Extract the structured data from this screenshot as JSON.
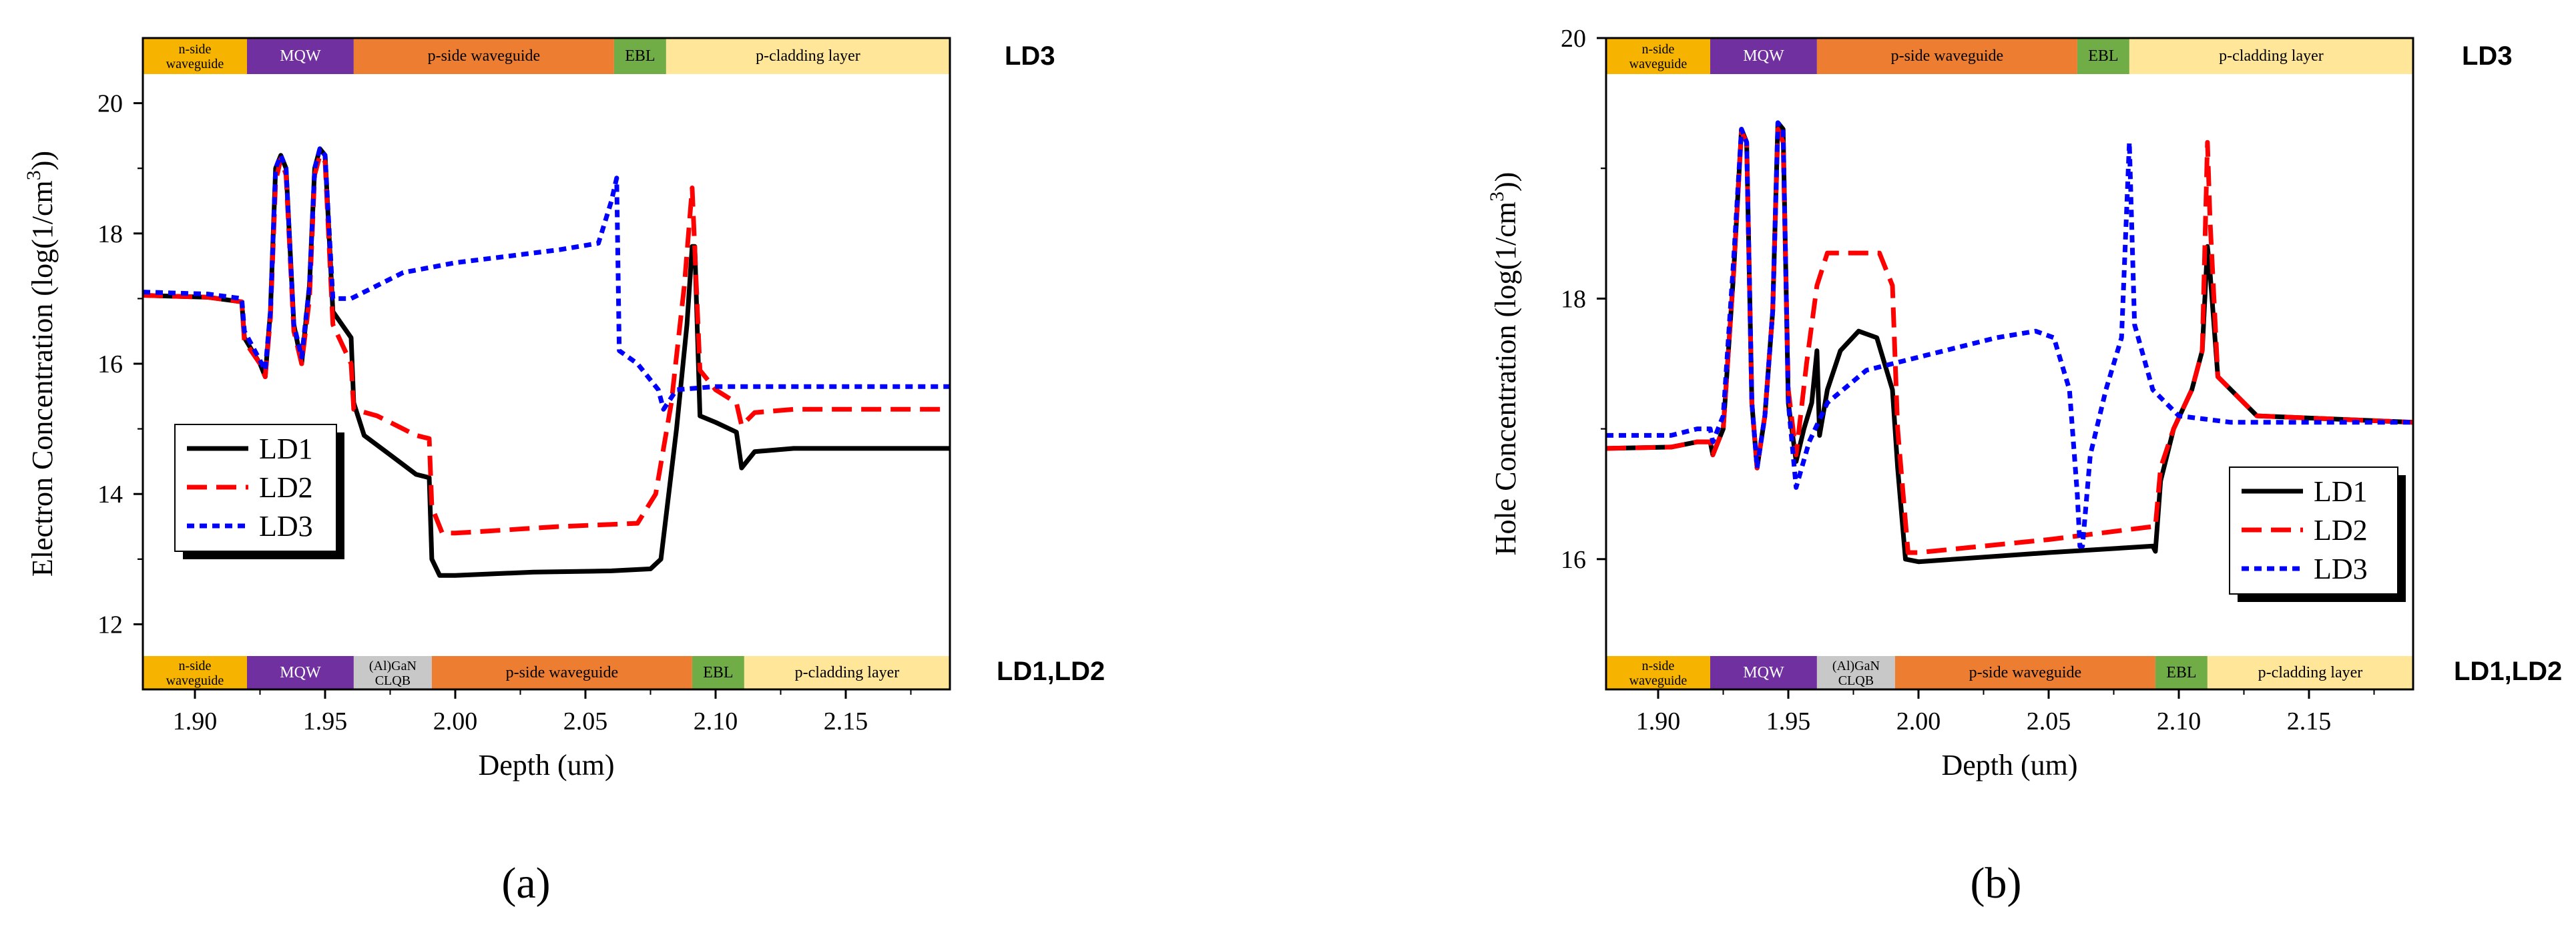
{
  "colors": {
    "n_waveguide": "#f6b400",
    "mqw": "#7030a0",
    "clqb": "#c8c8c8",
    "p_waveguide": "#ed7d31",
    "ebl": "#70ad47",
    "p_cladding": "#ffe699",
    "LD1": "#000000",
    "LD2": "#ff0000",
    "LD3": "#0000ff"
  },
  "stacks": {
    "top_label": "LD3",
    "bottom_label": "LD1,LD2",
    "top_layers": [
      {
        "key": "n_waveguide",
        "lines": [
          "n-side",
          "waveguide"
        ],
        "from": 1.88,
        "to": 1.92
      },
      {
        "key": "mqw",
        "lines": [
          "MQW"
        ],
        "from": 1.92,
        "to": 1.961
      },
      {
        "key": "p_waveguide",
        "lines": [
          "p-side waveguide"
        ],
        "from": 1.961,
        "to": 2.061
      },
      {
        "key": "ebl",
        "lines": [
          "EBL"
        ],
        "from": 2.061,
        "to": 2.081
      },
      {
        "key": "p_cladding",
        "lines": [
          "p-cladding layer"
        ],
        "from": 2.081,
        "to": 2.19
      }
    ],
    "bottom_layers": [
      {
        "key": "n_waveguide",
        "lines": [
          "n-side",
          "waveguide"
        ],
        "from": 1.88,
        "to": 1.92
      },
      {
        "key": "mqw",
        "lines": [
          "MQW"
        ],
        "from": 1.92,
        "to": 1.961
      },
      {
        "key": "clqb",
        "lines": [
          "(Al)GaN",
          "CLQB"
        ],
        "from": 1.961,
        "to": 1.991
      },
      {
        "key": "p_waveguide",
        "lines": [
          "p-side waveguide"
        ],
        "from": 1.991,
        "to": 2.091
      },
      {
        "key": "ebl",
        "lines": [
          "EBL"
        ],
        "from": 2.091,
        "to": 2.111
      },
      {
        "key": "p_cladding",
        "lines": [
          "p-cladding layer"
        ],
        "from": 2.111,
        "to": 2.19
      }
    ]
  },
  "chart_data": [
    {
      "id": "a",
      "panel_label": "(a)",
      "type": "line",
      "xlabel": "Depth (um)",
      "ylabel_prefix": "Electron Concentration (log(1/cm",
      "ylabel_sup": "3",
      "ylabel_suffix": "))",
      "xlim": [
        1.88,
        2.19
      ],
      "ylim": [
        11,
        21
      ],
      "xticks": [
        1.9,
        1.95,
        2.0,
        2.05,
        2.1,
        2.15
      ],
      "xtick_labels": [
        "1.90",
        "1.95",
        "2.00",
        "2.05",
        "2.10",
        "2.15"
      ],
      "yticks": [
        12,
        14,
        16,
        18,
        20
      ],
      "ytick_labels": [
        "12",
        "14",
        "16",
        "18",
        "20"
      ],
      "legend_position": "lower-left",
      "series": [
        {
          "name": "LD1",
          "dash": "solid",
          "points": [
            [
              1.88,
              17.05
            ],
            [
              1.905,
              17.02
            ],
            [
              1.918,
              16.95
            ],
            [
              1.919,
              16.4
            ],
            [
              1.925,
              16.0
            ],
            [
              1.927,
              15.8
            ],
            [
              1.929,
              16.8
            ],
            [
              1.931,
              19.0
            ],
            [
              1.933,
              19.2
            ],
            [
              1.935,
              19.0
            ],
            [
              1.938,
              16.6
            ],
            [
              1.941,
              16.0
            ],
            [
              1.944,
              17.2
            ],
            [
              1.946,
              19.0
            ],
            [
              1.948,
              19.3
            ],
            [
              1.95,
              19.2
            ],
            [
              1.953,
              16.8
            ],
            [
              1.96,
              16.4
            ],
            [
              1.961,
              15.4
            ],
            [
              1.965,
              14.9
            ],
            [
              1.975,
              14.6
            ],
            [
              1.985,
              14.3
            ],
            [
              1.99,
              14.25
            ],
            [
              1.991,
              13.0
            ],
            [
              1.994,
              12.75
            ],
            [
              2.0,
              12.75
            ],
            [
              2.03,
              12.8
            ],
            [
              2.06,
              12.82
            ],
            [
              2.075,
              12.85
            ],
            [
              2.079,
              13.0
            ],
            [
              2.085,
              15.0
            ],
            [
              2.089,
              16.6
            ],
            [
              2.091,
              17.8
            ],
            [
              2.092,
              17.8
            ],
            [
              2.094,
              15.2
            ],
            [
              2.1,
              15.1
            ],
            [
              2.108,
              14.95
            ],
            [
              2.11,
              14.4
            ],
            [
              2.115,
              14.65
            ],
            [
              2.13,
              14.7
            ],
            [
              2.19,
              14.7
            ]
          ]
        },
        {
          "name": "LD2",
          "dash": "dashed",
          "points": [
            [
              1.88,
              17.05
            ],
            [
              1.905,
              17.02
            ],
            [
              1.918,
              16.95
            ],
            [
              1.919,
              16.35
            ],
            [
              1.925,
              16.0
            ],
            [
              1.927,
              15.8
            ],
            [
              1.929,
              16.7
            ],
            [
              1.931,
              18.8
            ],
            [
              1.933,
              19.15
            ],
            [
              1.935,
              18.9
            ],
            [
              1.938,
              16.5
            ],
            [
              1.941,
              16.0
            ],
            [
              1.944,
              17.0
            ],
            [
              1.946,
              18.9
            ],
            [
              1.948,
              19.2
            ],
            [
              1.95,
              19.1
            ],
            [
              1.953,
              16.6
            ],
            [
              1.96,
              16.0
            ],
            [
              1.961,
              15.3
            ],
            [
              1.97,
              15.2
            ],
            [
              1.985,
              14.9
            ],
            [
              1.99,
              14.85
            ],
            [
              1.991,
              13.8
            ],
            [
              1.995,
              13.4
            ],
            [
              2.0,
              13.4
            ],
            [
              2.04,
              13.5
            ],
            [
              2.07,
              13.55
            ],
            [
              2.077,
              14.0
            ],
            [
              2.083,
              15.4
            ],
            [
              2.088,
              17.2
            ],
            [
              2.091,
              18.7
            ],
            [
              2.094,
              15.9
            ],
            [
              2.1,
              15.6
            ],
            [
              2.108,
              15.4
            ],
            [
              2.11,
              15.05
            ],
            [
              2.115,
              15.25
            ],
            [
              2.13,
              15.3
            ],
            [
              2.19,
              15.3
            ]
          ]
        },
        {
          "name": "LD3",
          "dash": "dotted",
          "points": [
            [
              1.88,
              17.1
            ],
            [
              1.905,
              17.07
            ],
            [
              1.918,
              17.0
            ],
            [
              1.919,
              16.5
            ],
            [
              1.925,
              16.05
            ],
            [
              1.927,
              15.9
            ],
            [
              1.929,
              16.8
            ],
            [
              1.931,
              19.0
            ],
            [
              1.933,
              19.2
            ],
            [
              1.935,
              19.0
            ],
            [
              1.938,
              16.6
            ],
            [
              1.941,
              16.1
            ],
            [
              1.944,
              17.2
            ],
            [
              1.946,
              19.0
            ],
            [
              1.948,
              19.3
            ],
            [
              1.95,
              19.2
            ],
            [
              1.953,
              17.0
            ],
            [
              1.96,
              17.0
            ],
            [
              1.97,
              17.2
            ],
            [
              1.98,
              17.4
            ],
            [
              2.0,
              17.55
            ],
            [
              2.02,
              17.65
            ],
            [
              2.04,
              17.75
            ],
            [
              2.055,
              17.85
            ],
            [
              2.06,
              18.5
            ],
            [
              2.062,
              18.85
            ],
            [
              2.063,
              16.2
            ],
            [
              2.07,
              16.0
            ],
            [
              2.078,
              15.6
            ],
            [
              2.08,
              15.3
            ],
            [
              2.085,
              15.6
            ],
            [
              2.1,
              15.65
            ],
            [
              2.19,
              15.65
            ]
          ]
        }
      ]
    },
    {
      "id": "b",
      "panel_label": "(b)",
      "type": "line",
      "xlabel": "Depth (um)",
      "ylabel_prefix": "Hole Concentration (log(1/cm",
      "ylabel_sup": "3",
      "ylabel_suffix": "))",
      "xlim": [
        1.88,
        2.19
      ],
      "ylim": [
        15,
        20
      ],
      "xticks": [
        1.9,
        1.95,
        2.0,
        2.05,
        2.1,
        2.15
      ],
      "xtick_labels": [
        "1.90",
        "1.95",
        "2.00",
        "2.05",
        "2.10",
        "2.15"
      ],
      "yticks": [
        16,
        18,
        20
      ],
      "ytick_labels": [
        "16",
        "18",
        "20"
      ],
      "legend_position": "lower-right",
      "series": [
        {
          "name": "LD1",
          "dash": "solid",
          "points": [
            [
              1.88,
              16.85
            ],
            [
              1.905,
              16.86
            ],
            [
              1.915,
              16.9
            ],
            [
              1.92,
              16.9
            ],
            [
              1.921,
              16.8
            ],
            [
              1.925,
              17.0
            ],
            [
              1.929,
              18.2
            ],
            [
              1.932,
              19.3
            ],
            [
              1.934,
              19.2
            ],
            [
              1.936,
              17.2
            ],
            [
              1.938,
              16.7
            ],
            [
              1.941,
              17.1
            ],
            [
              1.944,
              17.9
            ],
            [
              1.946,
              19.35
            ],
            [
              1.948,
              19.3
            ],
            [
              1.95,
              17.2
            ],
            [
              1.953,
              16.75
            ],
            [
              1.956,
              17.0
            ],
            [
              1.959,
              17.2
            ],
            [
              1.961,
              17.6
            ],
            [
              1.962,
              16.95
            ],
            [
              1.965,
              17.3
            ],
            [
              1.97,
              17.6
            ],
            [
              1.977,
              17.75
            ],
            [
              1.984,
              17.7
            ],
            [
              1.99,
              17.3
            ],
            [
              1.992,
              16.7
            ],
            [
              1.995,
              16.0
            ],
            [
              2.0,
              15.98
            ],
            [
              2.05,
              16.05
            ],
            [
              2.09,
              16.1
            ],
            [
              2.091,
              16.06
            ],
            [
              2.093,
              16.6
            ],
            [
              2.098,
              17.0
            ],
            [
              2.105,
              17.3
            ],
            [
              2.109,
              17.6
            ],
            [
              2.111,
              18.4
            ],
            [
              2.112,
              18.2
            ],
            [
              2.115,
              17.4
            ],
            [
              2.13,
              17.1
            ],
            [
              2.19,
              17.05
            ]
          ]
        },
        {
          "name": "LD2",
          "dash": "dashed",
          "points": [
            [
              1.88,
              16.85
            ],
            [
              1.905,
              16.86
            ],
            [
              1.915,
              16.9
            ],
            [
              1.92,
              16.9
            ],
            [
              1.921,
              16.8
            ],
            [
              1.925,
              17.0
            ],
            [
              1.929,
              18.2
            ],
            [
              1.932,
              19.28
            ],
            [
              1.934,
              19.2
            ],
            [
              1.936,
              17.2
            ],
            [
              1.938,
              16.7
            ],
            [
              1.941,
              17.1
            ],
            [
              1.944,
              17.9
            ],
            [
              1.946,
              19.3
            ],
            [
              1.948,
              19.2
            ],
            [
              1.95,
              17.3
            ],
            [
              1.953,
              16.8
            ],
            [
              1.957,
              17.5
            ],
            [
              1.961,
              18.1
            ],
            [
              1.965,
              18.35
            ],
            [
              1.985,
              18.35
            ],
            [
              1.99,
              18.1
            ],
            [
              1.992,
              17.0
            ],
            [
              1.996,
              16.05
            ],
            [
              2.0,
              16.05
            ],
            [
              2.05,
              16.15
            ],
            [
              2.09,
              16.25
            ],
            [
              2.091,
              16.25
            ],
            [
              2.093,
              16.7
            ],
            [
              2.098,
              17.0
            ],
            [
              2.105,
              17.3
            ],
            [
              2.109,
              17.6
            ],
            [
              2.111,
              19.2
            ],
            [
              2.112,
              18.6
            ],
            [
              2.115,
              17.4
            ],
            [
              2.13,
              17.1
            ],
            [
              2.19,
              17.05
            ]
          ]
        },
        {
          "name": "LD3",
          "dash": "dotted",
          "points": [
            [
              1.88,
              16.95
            ],
            [
              1.905,
              16.95
            ],
            [
              1.915,
              17.0
            ],
            [
              1.92,
              17.0
            ],
            [
              1.921,
              16.9
            ],
            [
              1.925,
              17.1
            ],
            [
              1.929,
              18.3
            ],
            [
              1.932,
              19.3
            ],
            [
              1.934,
              19.2
            ],
            [
              1.936,
              17.2
            ],
            [
              1.938,
              16.7
            ],
            [
              1.941,
              17.1
            ],
            [
              1.944,
              17.9
            ],
            [
              1.946,
              19.35
            ],
            [
              1.948,
              19.3
            ],
            [
              1.95,
              17.2
            ],
            [
              1.953,
              16.55
            ],
            [
              1.958,
              16.9
            ],
            [
              1.965,
              17.2
            ],
            [
              1.98,
              17.45
            ],
            [
              2.0,
              17.55
            ],
            [
              2.03,
              17.7
            ],
            [
              2.045,
              17.75
            ],
            [
              2.052,
              17.7
            ],
            [
              2.058,
              17.3
            ],
            [
              2.061,
              16.5
            ],
            [
              2.062,
              16.1
            ],
            [
              2.063,
              16.1
            ],
            [
              2.066,
              16.8
            ],
            [
              2.072,
              17.3
            ],
            [
              2.078,
              17.7
            ],
            [
              2.081,
              19.2
            ],
            [
              2.083,
              17.8
            ],
            [
              2.09,
              17.3
            ],
            [
              2.1,
              17.1
            ],
            [
              2.12,
              17.05
            ],
            [
              2.19,
              17.05
            ]
          ]
        }
      ]
    }
  ]
}
